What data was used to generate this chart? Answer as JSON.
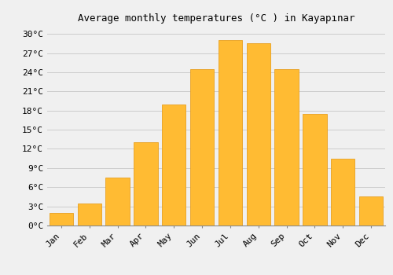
{
  "title": "Average monthly temperatures (°C ) in Kayapınar",
  "months": [
    "Jan",
    "Feb",
    "Mar",
    "Apr",
    "May",
    "Jun",
    "Jul",
    "Aug",
    "Sep",
    "Oct",
    "Nov",
    "Dec"
  ],
  "temperatures": [
    2.0,
    3.5,
    7.5,
    13.0,
    19.0,
    24.5,
    29.0,
    28.5,
    24.5,
    17.5,
    10.5,
    4.5
  ],
  "bar_color": "#FFBB33",
  "bar_edge_color": "#E8A020",
  "ylim": [
    0,
    31
  ],
  "yticks": [
    0,
    3,
    6,
    9,
    12,
    15,
    18,
    21,
    24,
    27,
    30
  ],
  "ytick_labels": [
    "0°C",
    "3°C",
    "6°C",
    "9°C",
    "12°C",
    "15°C",
    "18°C",
    "21°C",
    "24°C",
    "27°C",
    "30°C"
  ],
  "background_color": "#f0f0f0",
  "grid_color": "#cccccc",
  "title_fontsize": 9,
  "tick_fontsize": 8,
  "font_family": "monospace"
}
